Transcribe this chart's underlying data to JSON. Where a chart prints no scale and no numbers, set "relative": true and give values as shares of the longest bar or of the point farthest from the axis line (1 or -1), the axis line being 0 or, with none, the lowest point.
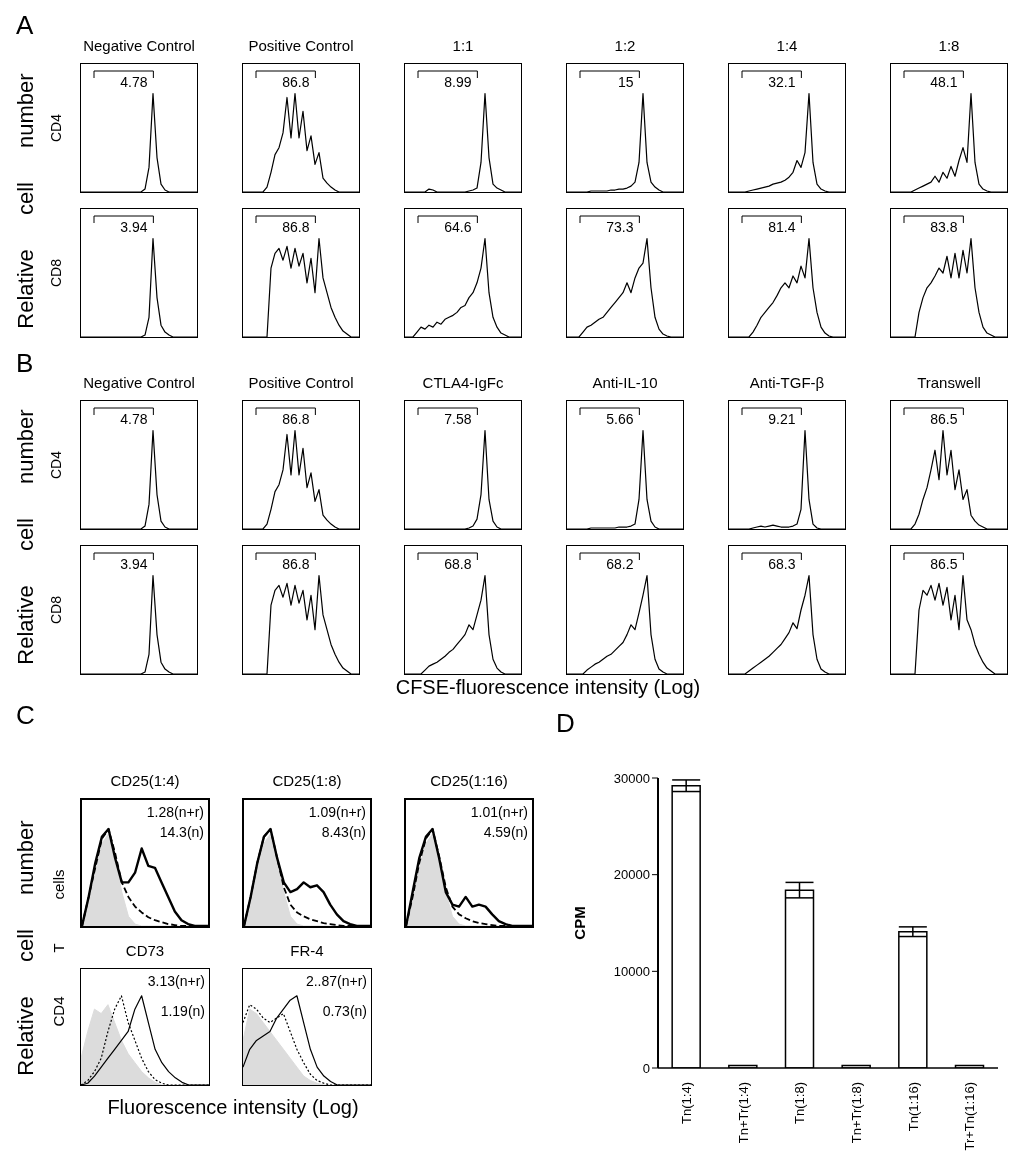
{
  "chart_data": [
    {
      "type": "other",
      "title": "A",
      "ylabel": "Relative cell number"
    },
    {
      "type": "line",
      "title": "Negative Control",
      "ylabel": "CD4",
      "relative": true,
      "color": "#000000",
      "annotations": [
        "4.78"
      ],
      "categories": [
        null,
        null,
        null,
        null,
        null,
        null,
        null,
        null,
        null,
        null,
        null,
        null,
        null,
        null,
        null,
        null,
        null,
        null,
        null,
        null,
        null,
        null,
        null,
        null,
        null,
        null,
        null,
        null,
        null,
        null
      ],
      "values": [
        0,
        0,
        0,
        0,
        0,
        0,
        0,
        0,
        0,
        0,
        0,
        0,
        0,
        0,
        0,
        0,
        0.03,
        0.25,
        1,
        0.35,
        0.08,
        0.02,
        0,
        0,
        0,
        0,
        0,
        0,
        0,
        0
      ]
    },
    {
      "type": "line",
      "title": "Positive Control",
      "relative": true,
      "color": "#000000",
      "annotations": [
        "86.8"
      ],
      "categories": [
        null,
        null,
        null,
        null,
        null,
        null,
        null,
        null,
        null,
        null,
        null,
        null,
        null,
        null,
        null,
        null,
        null,
        null,
        null,
        null,
        null,
        null,
        null,
        null,
        null,
        null,
        null,
        null,
        null,
        null
      ],
      "values": [
        0,
        0,
        0,
        0,
        0,
        0,
        0.05,
        0.2,
        0.38,
        0.45,
        0.6,
        0.96,
        0.55,
        1,
        0.55,
        0.82,
        0.42,
        0.57,
        0.28,
        0.4,
        0.14,
        0.09,
        0.05,
        0.02,
        0,
        0,
        0,
        0,
        0,
        0
      ]
    },
    {
      "type": "line",
      "title": "1:1",
      "relative": true,
      "color": "#000000",
      "annotations": [
        "8.99"
      ],
      "categories": [
        null,
        null,
        null,
        null,
        null,
        null,
        null,
        null,
        null,
        null,
        null,
        null,
        null,
        null,
        null,
        null,
        null,
        null,
        null,
        null,
        null,
        null,
        null,
        null,
        null,
        null,
        null,
        null,
        null,
        null
      ],
      "values": [
        0,
        0,
        0,
        0,
        0,
        0,
        0.03,
        0.02,
        0,
        0,
        0,
        0,
        0,
        0,
        0,
        0,
        0.01,
        0.02,
        0.04,
        0.3,
        1,
        0.35,
        0.08,
        0.04,
        0.02,
        0,
        0,
        0,
        0,
        0
      ]
    },
    {
      "type": "line",
      "title": "1:2",
      "relative": true,
      "color": "#000000",
      "annotations": [
        "15"
      ],
      "categories": [
        null,
        null,
        null,
        null,
        null,
        null,
        null,
        null,
        null,
        null,
        null,
        null,
        null,
        null,
        null,
        null,
        null,
        null,
        null,
        null,
        null,
        null,
        null,
        null,
        null,
        null,
        null,
        null,
        null,
        null
      ],
      "values": [
        0,
        0,
        0,
        0,
        0,
        0,
        0.01,
        0.01,
        0.01,
        0.01,
        0.01,
        0.02,
        0.02,
        0.03,
        0.03,
        0.04,
        0.06,
        0.1,
        0.3,
        1,
        0.3,
        0.1,
        0.05,
        0.02,
        0,
        0,
        0,
        0,
        0,
        0
      ]
    },
    {
      "type": "line",
      "title": "1:4",
      "relative": true,
      "color": "#000000",
      "annotations": [
        "32.1"
      ],
      "categories": [
        null,
        null,
        null,
        null,
        null,
        null,
        null,
        null,
        null,
        null,
        null,
        null,
        null,
        null,
        null,
        null,
        null,
        null,
        null,
        null,
        null,
        null,
        null,
        null,
        null,
        null,
        null,
        null,
        null,
        null
      ],
      "values": [
        0,
        0,
        0,
        0,
        0,
        0.01,
        0.02,
        0.03,
        0.04,
        0.05,
        0.06,
        0.08,
        0.09,
        0.1,
        0.12,
        0.15,
        0.2,
        0.32,
        0.25,
        0.4,
        1,
        0.3,
        0.08,
        0.03,
        0.01,
        0,
        0,
        0,
        0,
        0
      ]
    },
    {
      "type": "line",
      "title": "1:8",
      "relative": true,
      "color": "#000000",
      "annotations": [
        "48.1"
      ],
      "categories": [
        null,
        null,
        null,
        null,
        null,
        null,
        null,
        null,
        null,
        null,
        null,
        null,
        null,
        null,
        null,
        null,
        null,
        null,
        null,
        null,
        null,
        null,
        null,
        null,
        null,
        null,
        null,
        null,
        null,
        null
      ],
      "values": [
        0,
        0,
        0,
        0,
        0,
        0,
        0.02,
        0.04,
        0.06,
        0.08,
        0.1,
        0.16,
        0.1,
        0.2,
        0.14,
        0.26,
        0.16,
        0.32,
        0.45,
        0.3,
        1,
        0.3,
        0.08,
        0.03,
        0.01,
        0,
        0,
        0,
        0,
        0
      ]
    },
    {
      "type": "line",
      "ylabel": "CD8",
      "relative": true,
      "color": "#000000",
      "annotations": [
        "3.94"
      ],
      "categories": [
        null,
        null,
        null,
        null,
        null,
        null,
        null,
        null,
        null,
        null,
        null,
        null,
        null,
        null,
        null,
        null,
        null,
        null,
        null,
        null,
        null,
        null,
        null,
        null,
        null,
        null,
        null,
        null,
        null,
        null
      ],
      "values": [
        0,
        0,
        0,
        0,
        0,
        0,
        0,
        0,
        0,
        0,
        0,
        0,
        0,
        0,
        0,
        0,
        0.02,
        0.2,
        1,
        0.4,
        0.12,
        0.05,
        0.02,
        0,
        0,
        0,
        0,
        0,
        0,
        0
      ]
    },
    {
      "type": "line",
      "relative": true,
      "color": "#000000",
      "annotations": [
        "86.8"
      ],
      "categories": [
        null,
        null,
        null,
        null,
        null,
        null,
        null,
        null,
        null,
        null,
        null,
        null,
        null,
        null,
        null,
        null,
        null,
        null,
        null,
        null,
        null,
        null,
        null,
        null,
        null,
        null,
        null,
        null,
        null,
        null
      ],
      "values": [
        0,
        0,
        0,
        0,
        0,
        0,
        0,
        0.7,
        0.85,
        0.9,
        0.78,
        0.92,
        0.7,
        0.9,
        0.72,
        0.85,
        0.55,
        0.8,
        0.45,
        1,
        0.6,
        0.45,
        0.3,
        0.2,
        0.12,
        0.06,
        0.03,
        0,
        0,
        0
      ]
    },
    {
      "type": "line",
      "relative": true,
      "color": "#000000",
      "annotations": [
        "64.6"
      ],
      "categories": [
        null,
        null,
        null,
        null,
        null,
        null,
        null,
        null,
        null,
        null,
        null,
        null,
        null,
        null,
        null,
        null,
        null,
        null,
        null,
        null,
        null,
        null,
        null,
        null,
        null,
        null,
        null,
        null,
        null,
        null
      ],
      "values": [
        0,
        0,
        0,
        0.05,
        0.1,
        0.08,
        0.12,
        0.1,
        0.15,
        0.13,
        0.18,
        0.2,
        0.22,
        0.25,
        0.3,
        0.32,
        0.4,
        0.45,
        0.55,
        0.7,
        1,
        0.45,
        0.2,
        0.1,
        0.04,
        0.02,
        0,
        0,
        0,
        0
      ]
    },
    {
      "type": "line",
      "relative": true,
      "color": "#000000",
      "annotations": [
        "73.3"
      ],
      "categories": [
        null,
        null,
        null,
        null,
        null,
        null,
        null,
        null,
        null,
        null,
        null,
        null,
        null,
        null,
        null,
        null,
        null,
        null,
        null,
        null,
        null,
        null,
        null,
        null,
        null,
        null,
        null,
        null,
        null,
        null
      ],
      "values": [
        0,
        0,
        0,
        0,
        0.05,
        0.1,
        0.12,
        0.15,
        0.18,
        0.2,
        0.25,
        0.3,
        0.35,
        0.4,
        0.45,
        0.55,
        0.45,
        0.6,
        0.7,
        0.75,
        1,
        0.5,
        0.2,
        0.08,
        0.03,
        0.01,
        0,
        0,
        0,
        0
      ]
    },
    {
      "type": "line",
      "relative": true,
      "color": "#000000",
      "annotations": [
        "81.4"
      ],
      "categories": [
        null,
        null,
        null,
        null,
        null,
        null,
        null,
        null,
        null,
        null,
        null,
        null,
        null,
        null,
        null,
        null,
        null,
        null,
        null,
        null,
        null,
        null,
        null,
        null,
        null,
        null,
        null,
        null,
        null,
        null
      ],
      "values": [
        0,
        0,
        0,
        0,
        0,
        0,
        0.05,
        0.12,
        0.2,
        0.25,
        0.3,
        0.35,
        0.42,
        0.5,
        0.55,
        0.5,
        0.62,
        0.55,
        0.72,
        0.6,
        1,
        0.5,
        0.25,
        0.1,
        0.04,
        0.01,
        0,
        0,
        0,
        0
      ]
    },
    {
      "type": "line",
      "relative": true,
      "color": "#000000",
      "annotations": [
        "83.8"
      ],
      "categories": [
        null,
        null,
        null,
        null,
        null,
        null,
        null,
        null,
        null,
        null,
        null,
        null,
        null,
        null,
        null,
        null,
        null,
        null,
        null,
        null,
        null,
        null,
        null,
        null,
        null,
        null,
        null,
        null,
        null,
        null
      ],
      "values": [
        0,
        0,
        0,
        0,
        0,
        0,
        0,
        0.25,
        0.4,
        0.5,
        0.55,
        0.62,
        0.7,
        0.65,
        0.82,
        0.6,
        0.85,
        0.6,
        0.88,
        0.65,
        1,
        0.5,
        0.25,
        0.1,
        0.04,
        0.02,
        0,
        0,
        0,
        0
      ]
    },
    {
      "type": "other",
      "title": "B",
      "ylabel": "Relative cell number",
      "xlabel": "CFSE-fluorescence intensity (Log)"
    },
    {
      "type": "line",
      "title": "Negative Control",
      "ylabel": "CD4",
      "relative": true,
      "color": "#000000",
      "annotations": [
        "4.78"
      ],
      "categories": [
        null,
        null,
        null,
        null,
        null,
        null,
        null,
        null,
        null,
        null,
        null,
        null,
        null,
        null,
        null,
        null,
        null,
        null,
        null,
        null,
        null,
        null,
        null,
        null,
        null,
        null,
        null,
        null,
        null,
        null
      ],
      "values": [
        0,
        0,
        0,
        0,
        0,
        0,
        0,
        0,
        0,
        0,
        0,
        0,
        0,
        0,
        0,
        0,
        0.03,
        0.25,
        1,
        0.35,
        0.08,
        0.02,
        0,
        0,
        0,
        0,
        0,
        0,
        0,
        0
      ]
    },
    {
      "type": "line",
      "title": "Positive Control",
      "relative": true,
      "color": "#000000",
      "annotations": [
        "86.8"
      ],
      "categories": [
        null,
        null,
        null,
        null,
        null,
        null,
        null,
        null,
        null,
        null,
        null,
        null,
        null,
        null,
        null,
        null,
        null,
        null,
        null,
        null,
        null,
        null,
        null,
        null,
        null,
        null,
        null,
        null,
        null,
        null
      ],
      "values": [
        0,
        0,
        0,
        0,
        0,
        0,
        0.05,
        0.2,
        0.38,
        0.45,
        0.6,
        0.96,
        0.55,
        1,
        0.55,
        0.82,
        0.42,
        0.57,
        0.28,
        0.4,
        0.14,
        0.09,
        0.05,
        0.02,
        0,
        0,
        0,
        0,
        0,
        0
      ]
    },
    {
      "type": "line",
      "title": "CTLA4-IgFc",
      "relative": true,
      "color": "#000000",
      "annotations": [
        "7.58"
      ],
      "categories": [
        null,
        null,
        null,
        null,
        null,
        null,
        null,
        null,
        null,
        null,
        null,
        null,
        null,
        null,
        null,
        null,
        null,
        null,
        null,
        null,
        null,
        null,
        null,
        null,
        null,
        null,
        null,
        null,
        null,
        null
      ],
      "values": [
        0,
        0,
        0,
        0,
        0,
        0,
        0,
        0,
        0,
        0,
        0,
        0,
        0,
        0,
        0,
        0,
        0.01,
        0.03,
        0.1,
        0.35,
        1,
        0.3,
        0.08,
        0.02,
        0,
        0,
        0,
        0,
        0,
        0
      ]
    },
    {
      "type": "line",
      "title": "Anti-IL-10",
      "relative": true,
      "color": "#000000",
      "annotations": [
        "5.66"
      ],
      "categories": [
        null,
        null,
        null,
        null,
        null,
        null,
        null,
        null,
        null,
        null,
        null,
        null,
        null,
        null,
        null,
        null,
        null,
        null,
        null,
        null,
        null,
        null,
        null,
        null,
        null,
        null,
        null,
        null,
        null,
        null
      ],
      "values": [
        0,
        0,
        0,
        0,
        0,
        0,
        0.01,
        0.01,
        0.01,
        0.01,
        0.01,
        0.01,
        0.01,
        0.02,
        0.02,
        0.02,
        0.03,
        0.05,
        0.3,
        1,
        0.3,
        0.08,
        0.02,
        0,
        0,
        0,
        0,
        0,
        0,
        0
      ]
    },
    {
      "type": "line",
      "title": "Anti-TGF-β",
      "relative": true,
      "color": "#000000",
      "annotations": [
        "9.21"
      ],
      "categories": [
        null,
        null,
        null,
        null,
        null,
        null,
        null,
        null,
        null,
        null,
        null,
        null,
        null,
        null,
        null,
        null,
        null,
        null,
        null,
        null,
        null,
        null,
        null,
        null,
        null,
        null,
        null,
        null,
        null,
        null
      ],
      "values": [
        0,
        0,
        0,
        0,
        0,
        0,
        0.01,
        0.02,
        0.03,
        0.02,
        0.03,
        0.04,
        0.03,
        0.02,
        0.02,
        0.02,
        0.03,
        0.05,
        0.2,
        1,
        0.3,
        0.05,
        0.01,
        0,
        0,
        0,
        0,
        0,
        0,
        0
      ]
    },
    {
      "type": "line",
      "title": "Transwell",
      "relative": true,
      "color": "#000000",
      "annotations": [
        "86.5"
      ],
      "categories": [
        null,
        null,
        null,
        null,
        null,
        null,
        null,
        null,
        null,
        null,
        null,
        null,
        null,
        null,
        null,
        null,
        null,
        null,
        null,
        null,
        null,
        null,
        null,
        null,
        null,
        null,
        null,
        null,
        null,
        null
      ],
      "values": [
        0,
        0,
        0,
        0,
        0,
        0,
        0.05,
        0.15,
        0.3,
        0.42,
        0.6,
        0.8,
        0.5,
        1,
        0.55,
        0.8,
        0.4,
        0.6,
        0.3,
        0.4,
        0.14,
        0.08,
        0.04,
        0.02,
        0,
        0,
        0,
        0,
        0,
        0
      ]
    },
    {
      "type": "line",
      "ylabel": "CD8",
      "relative": true,
      "color": "#000000",
      "annotations": [
        "3.94"
      ],
      "categories": [
        null,
        null,
        null,
        null,
        null,
        null,
        null,
        null,
        null,
        null,
        null,
        null,
        null,
        null,
        null,
        null,
        null,
        null,
        null,
        null,
        null,
        null,
        null,
        null,
        null,
        null,
        null,
        null,
        null,
        null
      ],
      "values": [
        0,
        0,
        0,
        0,
        0,
        0,
        0,
        0,
        0,
        0,
        0,
        0,
        0,
        0,
        0,
        0,
        0.02,
        0.2,
        1,
        0.4,
        0.12,
        0.05,
        0.02,
        0,
        0,
        0,
        0,
        0,
        0,
        0
      ]
    },
    {
      "type": "line",
      "relative": true,
      "color": "#000000",
      "annotations": [
        "86.8"
      ],
      "categories": [
        null,
        null,
        null,
        null,
        null,
        null,
        null,
        null,
        null,
        null,
        null,
        null,
        null,
        null,
        null,
        null,
        null,
        null,
        null,
        null,
        null,
        null,
        null,
        null,
        null,
        null,
        null,
        null,
        null,
        null
      ],
      "values": [
        0,
        0,
        0,
        0,
        0,
        0,
        0,
        0.7,
        0.85,
        0.9,
        0.78,
        0.92,
        0.7,
        0.9,
        0.72,
        0.85,
        0.55,
        0.8,
        0.45,
        1,
        0.6,
        0.45,
        0.3,
        0.2,
        0.12,
        0.06,
        0.03,
        0,
        0,
        0
      ]
    },
    {
      "type": "line",
      "relative": true,
      "color": "#000000",
      "annotations": [
        "68.8"
      ],
      "categories": [
        null,
        null,
        null,
        null,
        null,
        null,
        null,
        null,
        null,
        null,
        null,
        null,
        null,
        null,
        null,
        null,
        null,
        null,
        null,
        null,
        null,
        null,
        null,
        null,
        null,
        null,
        null,
        null,
        null,
        null
      ],
      "values": [
        0,
        0,
        0,
        0,
        0,
        0.04,
        0.08,
        0.1,
        0.12,
        0.15,
        0.18,
        0.22,
        0.25,
        0.3,
        0.35,
        0.4,
        0.5,
        0.45,
        0.6,
        0.75,
        1,
        0.4,
        0.15,
        0.06,
        0.02,
        0,
        0,
        0,
        0,
        0
      ]
    },
    {
      "type": "line",
      "relative": true,
      "color": "#000000",
      "annotations": [
        "68.2"
      ],
      "categories": [
        null,
        null,
        null,
        null,
        null,
        null,
        null,
        null,
        null,
        null,
        null,
        null,
        null,
        null,
        null,
        null,
        null,
        null,
        null,
        null,
        null,
        null,
        null,
        null,
        null,
        null,
        null,
        null,
        null,
        null
      ],
      "values": [
        0,
        0,
        0,
        0,
        0,
        0.04,
        0.07,
        0.1,
        0.12,
        0.15,
        0.18,
        0.2,
        0.24,
        0.28,
        0.32,
        0.4,
        0.5,
        0.45,
        0.62,
        0.8,
        1,
        0.4,
        0.15,
        0.05,
        0.02,
        0,
        0,
        0,
        0,
        0
      ]
    },
    {
      "type": "line",
      "relative": true,
      "color": "#000000",
      "annotations": [
        "68.3"
      ],
      "categories": [
        null,
        null,
        null,
        null,
        null,
        null,
        null,
        null,
        null,
        null,
        null,
        null,
        null,
        null,
        null,
        null,
        null,
        null,
        null,
        null,
        null,
        null,
        null,
        null,
        null,
        null,
        null,
        null,
        null,
        null
      ],
      "values": [
        0,
        0,
        0,
        0,
        0,
        0.03,
        0.06,
        0.09,
        0.12,
        0.15,
        0.18,
        0.22,
        0.26,
        0.3,
        0.36,
        0.42,
        0.52,
        0.46,
        0.65,
        0.8,
        1,
        0.4,
        0.15,
        0.05,
        0.02,
        0,
        0,
        0,
        0,
        0
      ]
    },
    {
      "type": "line",
      "relative": true,
      "color": "#000000",
      "annotations": [
        "86.5"
      ],
      "categories": [
        null,
        null,
        null,
        null,
        null,
        null,
        null,
        null,
        null,
        null,
        null,
        null,
        null,
        null,
        null,
        null,
        null,
        null,
        null,
        null,
        null,
        null,
        null,
        null,
        null,
        null,
        null,
        null,
        null,
        null
      ],
      "values": [
        0,
        0,
        0,
        0,
        0,
        0,
        0,
        0.65,
        0.85,
        0.8,
        0.9,
        0.75,
        0.92,
        0.7,
        0.88,
        0.55,
        0.8,
        0.45,
        1,
        0.55,
        0.45,
        0.3,
        0.2,
        0.12,
        0.06,
        0.03,
        0,
        0,
        0,
        0
      ]
    },
    {
      "type": "other",
      "title": "C",
      "ylabel": "Relative cell number",
      "xlabel": "Fluorescence intensity (Log)",
      "annotations": [
        "CD4 T cells"
      ]
    },
    {
      "type": "line",
      "title": "CD25(1:4)",
      "relative": true,
      "annotations": [
        "1.28(n+r)",
        "14.3(n)"
      ],
      "categories": [
        null,
        null,
        null,
        null,
        null,
        null,
        null,
        null,
        null,
        null,
        null,
        null,
        null,
        null,
        null,
        null,
        null,
        null,
        null,
        null
      ],
      "series": [
        {
          "type": "area",
          "color": "#dcdcdc",
          "values": [
            0,
            0.3,
            0.6,
            0.85,
            0.95,
            0.7,
            0.35,
            0.1,
            0.02,
            0,
            0,
            0,
            0,
            0,
            0,
            0,
            0,
            0,
            0,
            0
          ]
        },
        {
          "color": "#000000",
          "line_style": "dashed",
          "values": [
            0,
            0.3,
            0.6,
            0.9,
            1,
            0.75,
            0.45,
            0.3,
            0.2,
            0.14,
            0.09,
            0.06,
            0.04,
            0.02,
            0.01,
            0,
            0,
            0,
            0,
            0
          ]
        },
        {
          "color": "#000000",
          "values": [
            0,
            0.3,
            0.65,
            0.92,
            1,
            0.7,
            0.45,
            0.45,
            0.55,
            0.8,
            0.62,
            0.6,
            0.45,
            0.3,
            0.15,
            0.06,
            0.02,
            0,
            0,
            0
          ]
        }
      ]
    },
    {
      "type": "line",
      "title": "CD25(1:8)",
      "relative": true,
      "annotations": [
        "1.09(n+r)",
        "8.43(n)"
      ],
      "categories": [
        null,
        null,
        null,
        null,
        null,
        null,
        null,
        null,
        null,
        null,
        null,
        null,
        null,
        null,
        null,
        null,
        null,
        null,
        null,
        null
      ],
      "series": [
        {
          "type": "area",
          "color": "#dcdcdc",
          "values": [
            0,
            0.3,
            0.6,
            0.85,
            0.95,
            0.7,
            0.35,
            0.1,
            0.02,
            0,
            0,
            0,
            0,
            0,
            0,
            0,
            0,
            0,
            0,
            0
          ]
        },
        {
          "color": "#000000",
          "line_style": "dashed",
          "values": [
            0,
            0.3,
            0.65,
            0.92,
            1,
            0.7,
            0.4,
            0.22,
            0.14,
            0.1,
            0.07,
            0.05,
            0.03,
            0.02,
            0.01,
            0,
            0,
            0,
            0,
            0
          ]
        },
        {
          "color": "#000000",
          "values": [
            0,
            0.3,
            0.65,
            0.92,
            1,
            0.7,
            0.45,
            0.35,
            0.38,
            0.45,
            0.4,
            0.42,
            0.35,
            0.22,
            0.12,
            0.05,
            0.02,
            0,
            0,
            0
          ]
        }
      ]
    },
    {
      "type": "line",
      "title": "CD25(1:16)",
      "relative": true,
      "annotations": [
        "1.01(n+r)",
        "4.59(n)"
      ],
      "categories": [
        null,
        null,
        null,
        null,
        null,
        null,
        null,
        null,
        null,
        null,
        null,
        null,
        null,
        null,
        null,
        null,
        null,
        null,
        null,
        null
      ],
      "series": [
        {
          "type": "area",
          "color": "#dcdcdc",
          "values": [
            0,
            0.3,
            0.6,
            0.85,
            0.95,
            0.7,
            0.35,
            0.1,
            0.02,
            0,
            0,
            0,
            0,
            0,
            0,
            0,
            0,
            0,
            0,
            0
          ]
        },
        {
          "color": "#000000",
          "line_style": "dashed",
          "values": [
            0,
            0.3,
            0.65,
            0.9,
            1,
            0.72,
            0.4,
            0.2,
            0.12,
            0.08,
            0.05,
            0.03,
            0.02,
            0.01,
            0,
            0,
            0,
            0,
            0,
            0
          ]
        },
        {
          "color": "#000000",
          "values": [
            0,
            0.35,
            0.7,
            0.92,
            1,
            0.7,
            0.35,
            0.22,
            0.2,
            0.3,
            0.2,
            0.22,
            0.2,
            0.12,
            0.05,
            0.02,
            0,
            0,
            0,
            0
          ]
        }
      ]
    },
    {
      "type": "line",
      "title": "CD73",
      "relative": true,
      "annotations": [
        "3.13(n+r)",
        "1.19(n)"
      ],
      "categories": [
        null,
        null,
        null,
        null,
        null,
        null,
        null,
        null,
        null,
        null,
        null,
        null,
        null,
        null,
        null,
        null,
        null,
        null,
        null,
        null
      ],
      "series": [
        {
          "type": "area",
          "color": "#dcdcdc",
          "values": [
            0.3,
            0.6,
            0.85,
            0.8,
            0.9,
            0.7,
            0.5,
            0.35,
            0.25,
            0.15,
            0.08,
            0.03,
            0,
            0,
            0,
            0,
            0,
            0,
            0,
            0
          ]
        },
        {
          "color": "#000000",
          "line_style": "dotted",
          "values": [
            0,
            0.05,
            0.15,
            0.3,
            0.6,
            0.85,
            1,
            0.7,
            0.5,
            0.3,
            0.15,
            0.06,
            0.02,
            0,
            0,
            0,
            0,
            0,
            0,
            0
          ]
        },
        {
          "color": "#000000",
          "values": [
            0,
            0.02,
            0.1,
            0.2,
            0.3,
            0.4,
            0.5,
            0.6,
            0.85,
            1,
            0.7,
            0.4,
            0.25,
            0.15,
            0.08,
            0.03,
            0,
            0,
            0,
            0
          ]
        }
      ]
    },
    {
      "type": "line",
      "title": "FR-4",
      "relative": true,
      "annotations": [
        "2..87(n+r)",
        "0.73(n)"
      ],
      "categories": [
        null,
        null,
        null,
        null,
        null,
        null,
        null,
        null,
        null,
        null,
        null,
        null,
        null,
        null,
        null,
        null,
        null,
        null,
        null,
        null
      ],
      "series": [
        {
          "type": "area",
          "color": "#dcdcdc",
          "values": [
            0.5,
            0.85,
            0.8,
            0.7,
            0.6,
            0.5,
            0.4,
            0.3,
            0.2,
            0.1,
            0.05,
            0.02,
            0,
            0,
            0,
            0,
            0,
            0,
            0,
            0
          ]
        },
        {
          "color": "#000000",
          "line_style": "dotted",
          "values": [
            0.7,
            0.9,
            0.85,
            0.75,
            0.7,
            0.75,
            0.8,
            0.6,
            0.4,
            0.25,
            0.12,
            0.05,
            0.02,
            0,
            0,
            0,
            0,
            0,
            0,
            0
          ]
        },
        {
          "color": "#000000",
          "values": [
            0.2,
            0.4,
            0.5,
            0.55,
            0.6,
            0.75,
            0.85,
            0.95,
            1,
            0.7,
            0.4,
            0.2,
            0.1,
            0.04,
            0,
            0,
            0,
            0,
            0,
            0
          ]
        }
      ]
    },
    {
      "type": "other",
      "title": "D"
    },
    {
      "type": "bar",
      "ylabel": "CPM",
      "categories": [
        "Tn(1:4)",
        "Tn+Tr(1:4)",
        "Tn(1:8)",
        "Tn+Tr(1:8)",
        "Tn(1:16)",
        "Tr+Tn(1:16)"
      ],
      "values": [
        29200,
        250,
        18400,
        250,
        14100,
        250
      ],
      "errors": [
        600,
        null,
        800,
        null,
        500,
        null
      ],
      "color": "#ffffff",
      "ylim": [
        0,
        30000
      ],
      "yticks": [
        0,
        10000,
        20000,
        30000
      ]
    }
  ]
}
